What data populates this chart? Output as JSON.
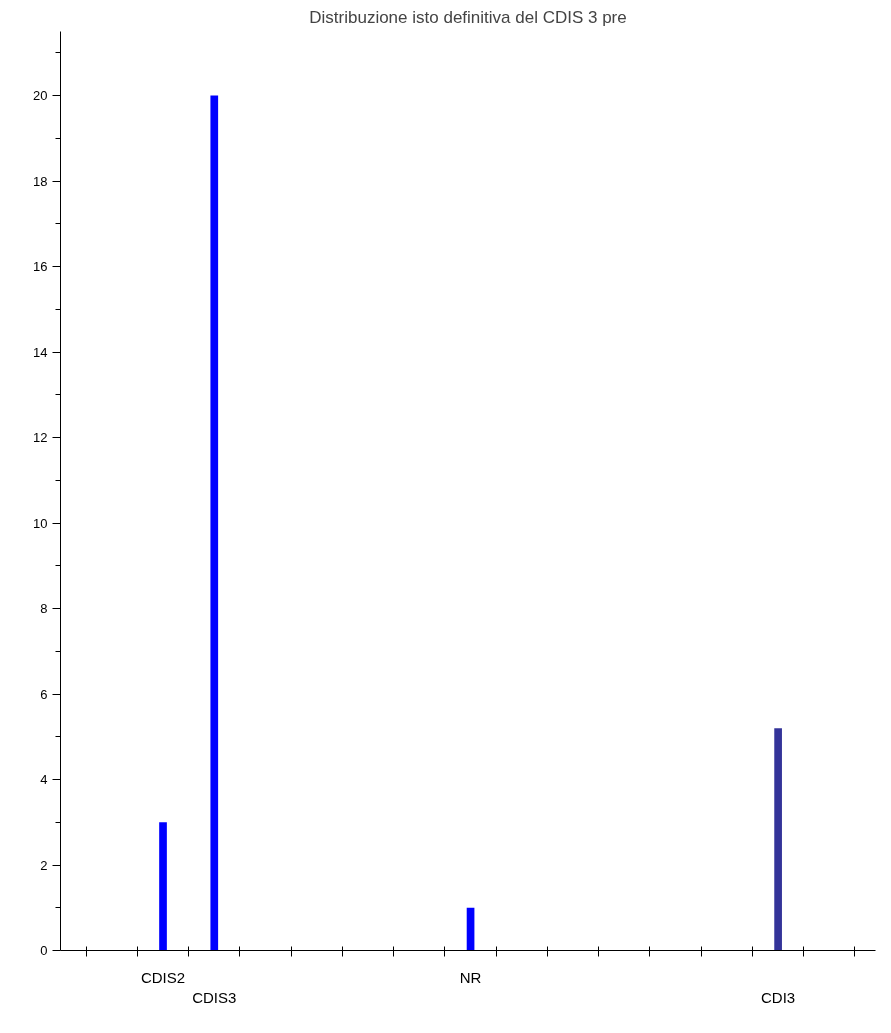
{
  "chart_data": {
    "type": "bar",
    "title": "Distribuzione isto definitiva del CDIS 3 pre",
    "categories": [
      null,
      "CDIS2",
      "CDIS3",
      null,
      null,
      null,
      null,
      "NR",
      null,
      null,
      null,
      null,
      null,
      "CDI3",
      null
    ],
    "values": [
      null,
      3,
      20,
      null,
      null,
      null,
      null,
      1,
      null,
      null,
      null,
      null,
      null,
      5.2,
      null
    ],
    "colors": [
      "#0000ff",
      "#0000ff",
      "#0000ff",
      "#0000ff",
      "#0000ff",
      "#0000ff",
      "#0000ff",
      "#0000ff",
      "#0000ff",
      "#0000ff",
      "#0000ff",
      "#0000ff",
      "#0000ff",
      "#333399",
      "#0000ff"
    ],
    "ylim": [
      0,
      21.5
    ],
    "yticks": [
      0,
      2,
      4,
      6,
      8,
      10,
      12,
      14,
      16,
      18,
      20
    ],
    "grid": false
  }
}
